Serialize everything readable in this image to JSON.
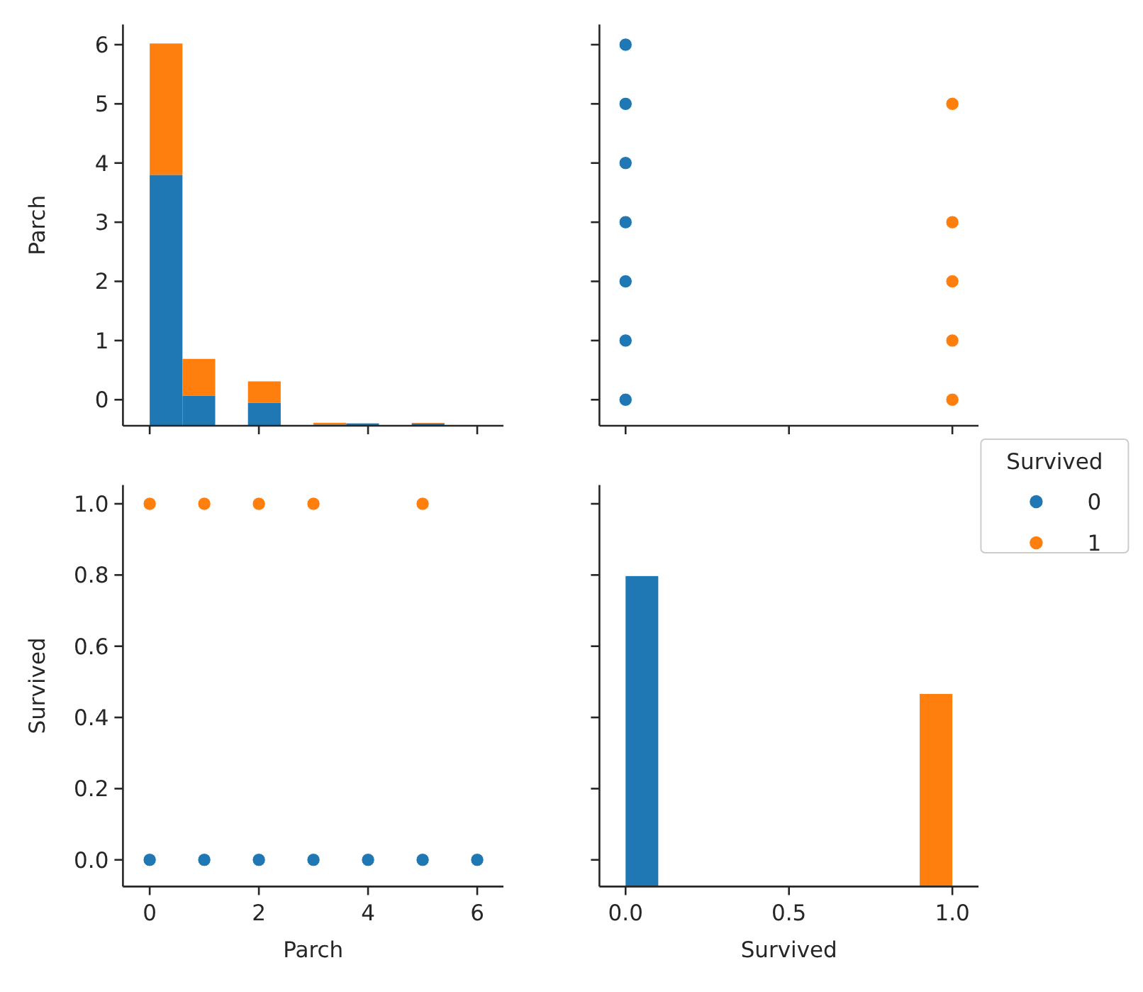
{
  "chart_data": [
    {
      "type": "histogram",
      "ylabel": "Parch",
      "bins": [
        0,
        0.6,
        1.2,
        1.8,
        2.4,
        3.0,
        3.6,
        4.2,
        4.8,
        5.4,
        6.0
      ],
      "series": [
        {
          "color": "#1f77b4",
          "base": [
            -0.44,
            -0.44,
            null,
            -0.44,
            null,
            -0.44,
            -0.44,
            null,
            -0.44,
            -0.44
          ],
          "values": [
            4.24,
            0.51,
            0,
            0.39,
            0,
            0.02,
            0.04,
            0,
            0.04,
            0.01
          ]
        },
        {
          "color": "#ff7f0e",
          "base": [
            3.8,
            0.07,
            null,
            -0.05,
            null,
            -0.42,
            null,
            null,
            -0.4,
            null
          ],
          "values": [
            2.22,
            0.62,
            0,
            0.36,
            0,
            0.03,
            0,
            0,
            0.01,
            0
          ]
        }
      ],
      "xlim": [
        -0.49,
        6.48
      ],
      "xticks": [
        0,
        2,
        4,
        6
      ],
      "ylim": [
        -0.44,
        6.34
      ],
      "yticks": [
        0,
        1,
        2,
        3,
        4,
        5,
        6
      ],
      "tick_labels": "y"
    },
    {
      "type": "scatter",
      "marker": "circle",
      "legend": "right",
      "legend_title": "Survived",
      "series": [
        {
          "name": "0",
          "color": "#1f77b4",
          "x": [
            0,
            0,
            0,
            0,
            0,
            0,
            0
          ],
          "values": [
            0,
            1,
            2,
            3,
            4,
            5,
            6
          ]
        },
        {
          "name": "1",
          "color": "#ff7f0e",
          "x": [
            1,
            1,
            1,
            1,
            1
          ],
          "values": [
            0,
            1,
            2,
            3,
            5
          ]
        }
      ],
      "xlim": [
        -0.08,
        1.08
      ],
      "xticks": [
        {
          "value": 0,
          "label": null
        },
        {
          "value": 0.5,
          "label": null
        },
        {
          "value": 1,
          "label": null
        }
      ],
      "ylim": [
        -0.44,
        6.34
      ],
      "yticks": [
        0,
        1,
        2,
        3,
        4,
        5,
        6
      ],
      "tick_labels": false
    },
    {
      "type": "scatter",
      "marker": "circle",
      "xlabel": "Parch",
      "ylabel": "Survived",
      "series": [
        {
          "color": "#1f77b4",
          "x": [
            0,
            1,
            2,
            3,
            4,
            5,
            6
          ],
          "values": [
            0,
            0,
            0,
            0,
            0,
            0,
            0
          ]
        },
        {
          "color": "#ff7f0e",
          "x": [
            0,
            1,
            2,
            3,
            5
          ],
          "values": [
            1,
            1,
            1,
            1,
            1
          ]
        }
      ],
      "xlim": [
        -0.49,
        6.48
      ],
      "xticks": [
        0,
        2,
        4,
        6
      ],
      "ylim": [
        -0.075,
        1.053
      ],
      "yticks": [
        {
          "value": 0,
          "label": "0.0"
        },
        {
          "value": 0.2,
          "label": "0.2"
        },
        {
          "value": 0.4,
          "label": "0.4"
        },
        {
          "value": 0.6,
          "label": "0.6"
        },
        {
          "value": 0.8,
          "label": "0.8"
        },
        {
          "value": 1,
          "label": "1.0"
        }
      ]
    },
    {
      "type": "histogram",
      "xlabel": "Survived",
      "bins": [
        0,
        0.1,
        0.2,
        0.3,
        0.4,
        0.5,
        0.6,
        0.7,
        0.8,
        0.9,
        1.0
      ],
      "series": [
        {
          "color": "#1f77b4",
          "base": [
            -0.075,
            null,
            null,
            null,
            null,
            null,
            null,
            null,
            null,
            null
          ],
          "values": [
            0.872,
            0,
            0,
            0,
            0,
            0,
            0,
            0,
            0,
            0
          ]
        },
        {
          "color": "#ff7f0e",
          "base": [
            null,
            null,
            null,
            null,
            null,
            null,
            null,
            null,
            null,
            -0.075
          ],
          "values": [
            0,
            0,
            0,
            0,
            0,
            0,
            0,
            0,
            0,
            0.541
          ]
        }
      ],
      "xlim": [
        -0.08,
        1.08
      ],
      "xticks": [
        {
          "value": 0,
          "label": "0.0"
        },
        {
          "value": 0.5,
          "label": "0.5"
        },
        {
          "value": 1,
          "label": "1.0"
        }
      ],
      "ylim": [
        -0.075,
        1.053
      ],
      "yticks": [
        {
          "value": 0,
          "label": null
        },
        {
          "value": 0.2,
          "label": null
        },
        {
          "value": 0.4,
          "label": null
        },
        {
          "value": 0.6,
          "label": null
        },
        {
          "value": 0.8,
          "label": null
        },
        {
          "value": 1,
          "label": null
        }
      ],
      "tick_labels": "x"
    }
  ]
}
